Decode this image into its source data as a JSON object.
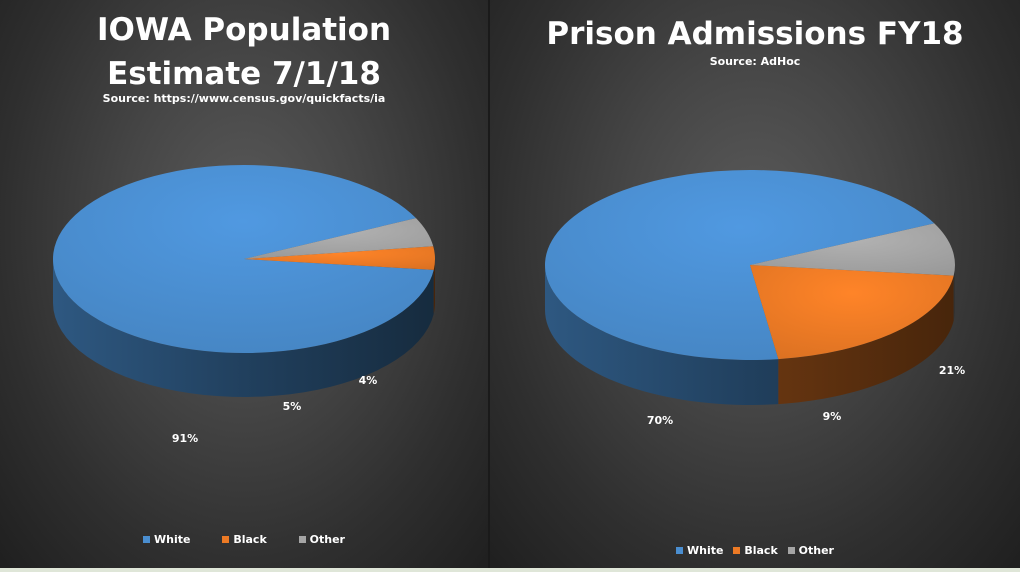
{
  "chart_data": [
    {
      "type": "pie",
      "title_lines": [
        "IOWA Population",
        "Estimate 7/1/18"
      ],
      "subtitle": "Source: https://www.census.gov/quickfacts/ia",
      "categories": [
        "White",
        "Black",
        "Other"
      ],
      "values": [
        91,
        4,
        5
      ],
      "labels": [
        "91%",
        "4%",
        "5%"
      ],
      "colors": [
        "#4a8ed0",
        "#ec7a25",
        "#a5a5a5"
      ],
      "legend_position": "bottom",
      "style": "3d"
    },
    {
      "type": "pie",
      "title_lines": [
        "Prison Admissions FY18"
      ],
      "subtitle": "Source: AdHoc",
      "categories": [
        "White",
        "Black",
        "Other"
      ],
      "values": [
        70,
        21,
        9
      ],
      "labels": [
        "70%",
        "21%",
        "9%"
      ],
      "colors": [
        "#4a8ed0",
        "#ec7a25",
        "#a5a5a5"
      ],
      "legend_position": "bottom",
      "style": "3d"
    }
  ]
}
